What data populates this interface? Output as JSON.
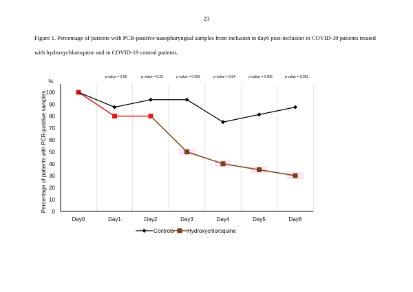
{
  "page_number": "23",
  "caption": {
    "line1": "Figure 1. Percentage of patients with PCR-positive nasopharyngeal samples from inclusion to day6 post-inclusion in COVID-19 patients treated",
    "line2": "with hydroxychloroquine and in COVID-19 control patients."
  },
  "chart_data": {
    "type": "line",
    "title": "",
    "xlabel": "",
    "ylabel": "Percentage of patients with PCR-positive samples",
    "y_unit_label": "%",
    "ylim": [
      0,
      100
    ],
    "yticks": [
      0,
      10,
      20,
      30,
      40,
      50,
      60,
      70,
      80,
      90,
      100
    ],
    "categories": [
      "Day0",
      "Day1",
      "Day2",
      "Day3",
      "Day4",
      "Day5",
      "Day6"
    ],
    "series": [
      {
        "name": "Controls",
        "color": "#000000",
        "marker": "diamond",
        "values": [
          100,
          87.5,
          93.8,
          93.8,
          75,
          81.3,
          87.5
        ]
      },
      {
        "name": "Hydroxychloroquine",
        "color": "#e31b1b",
        "color_late": "#7b4013",
        "marker": "square",
        "values": [
          100,
          80,
          80,
          50,
          40,
          35,
          30
        ]
      }
    ],
    "annotations": [
      "",
      "p-value = 0.55",
      "p-value = 0.23",
      "p-value = 0.005",
      "p-value = 0.04",
      "p-value = 0.006",
      "p-value = 0.001"
    ],
    "grid": "vertical",
    "legend_position": "bottom"
  }
}
